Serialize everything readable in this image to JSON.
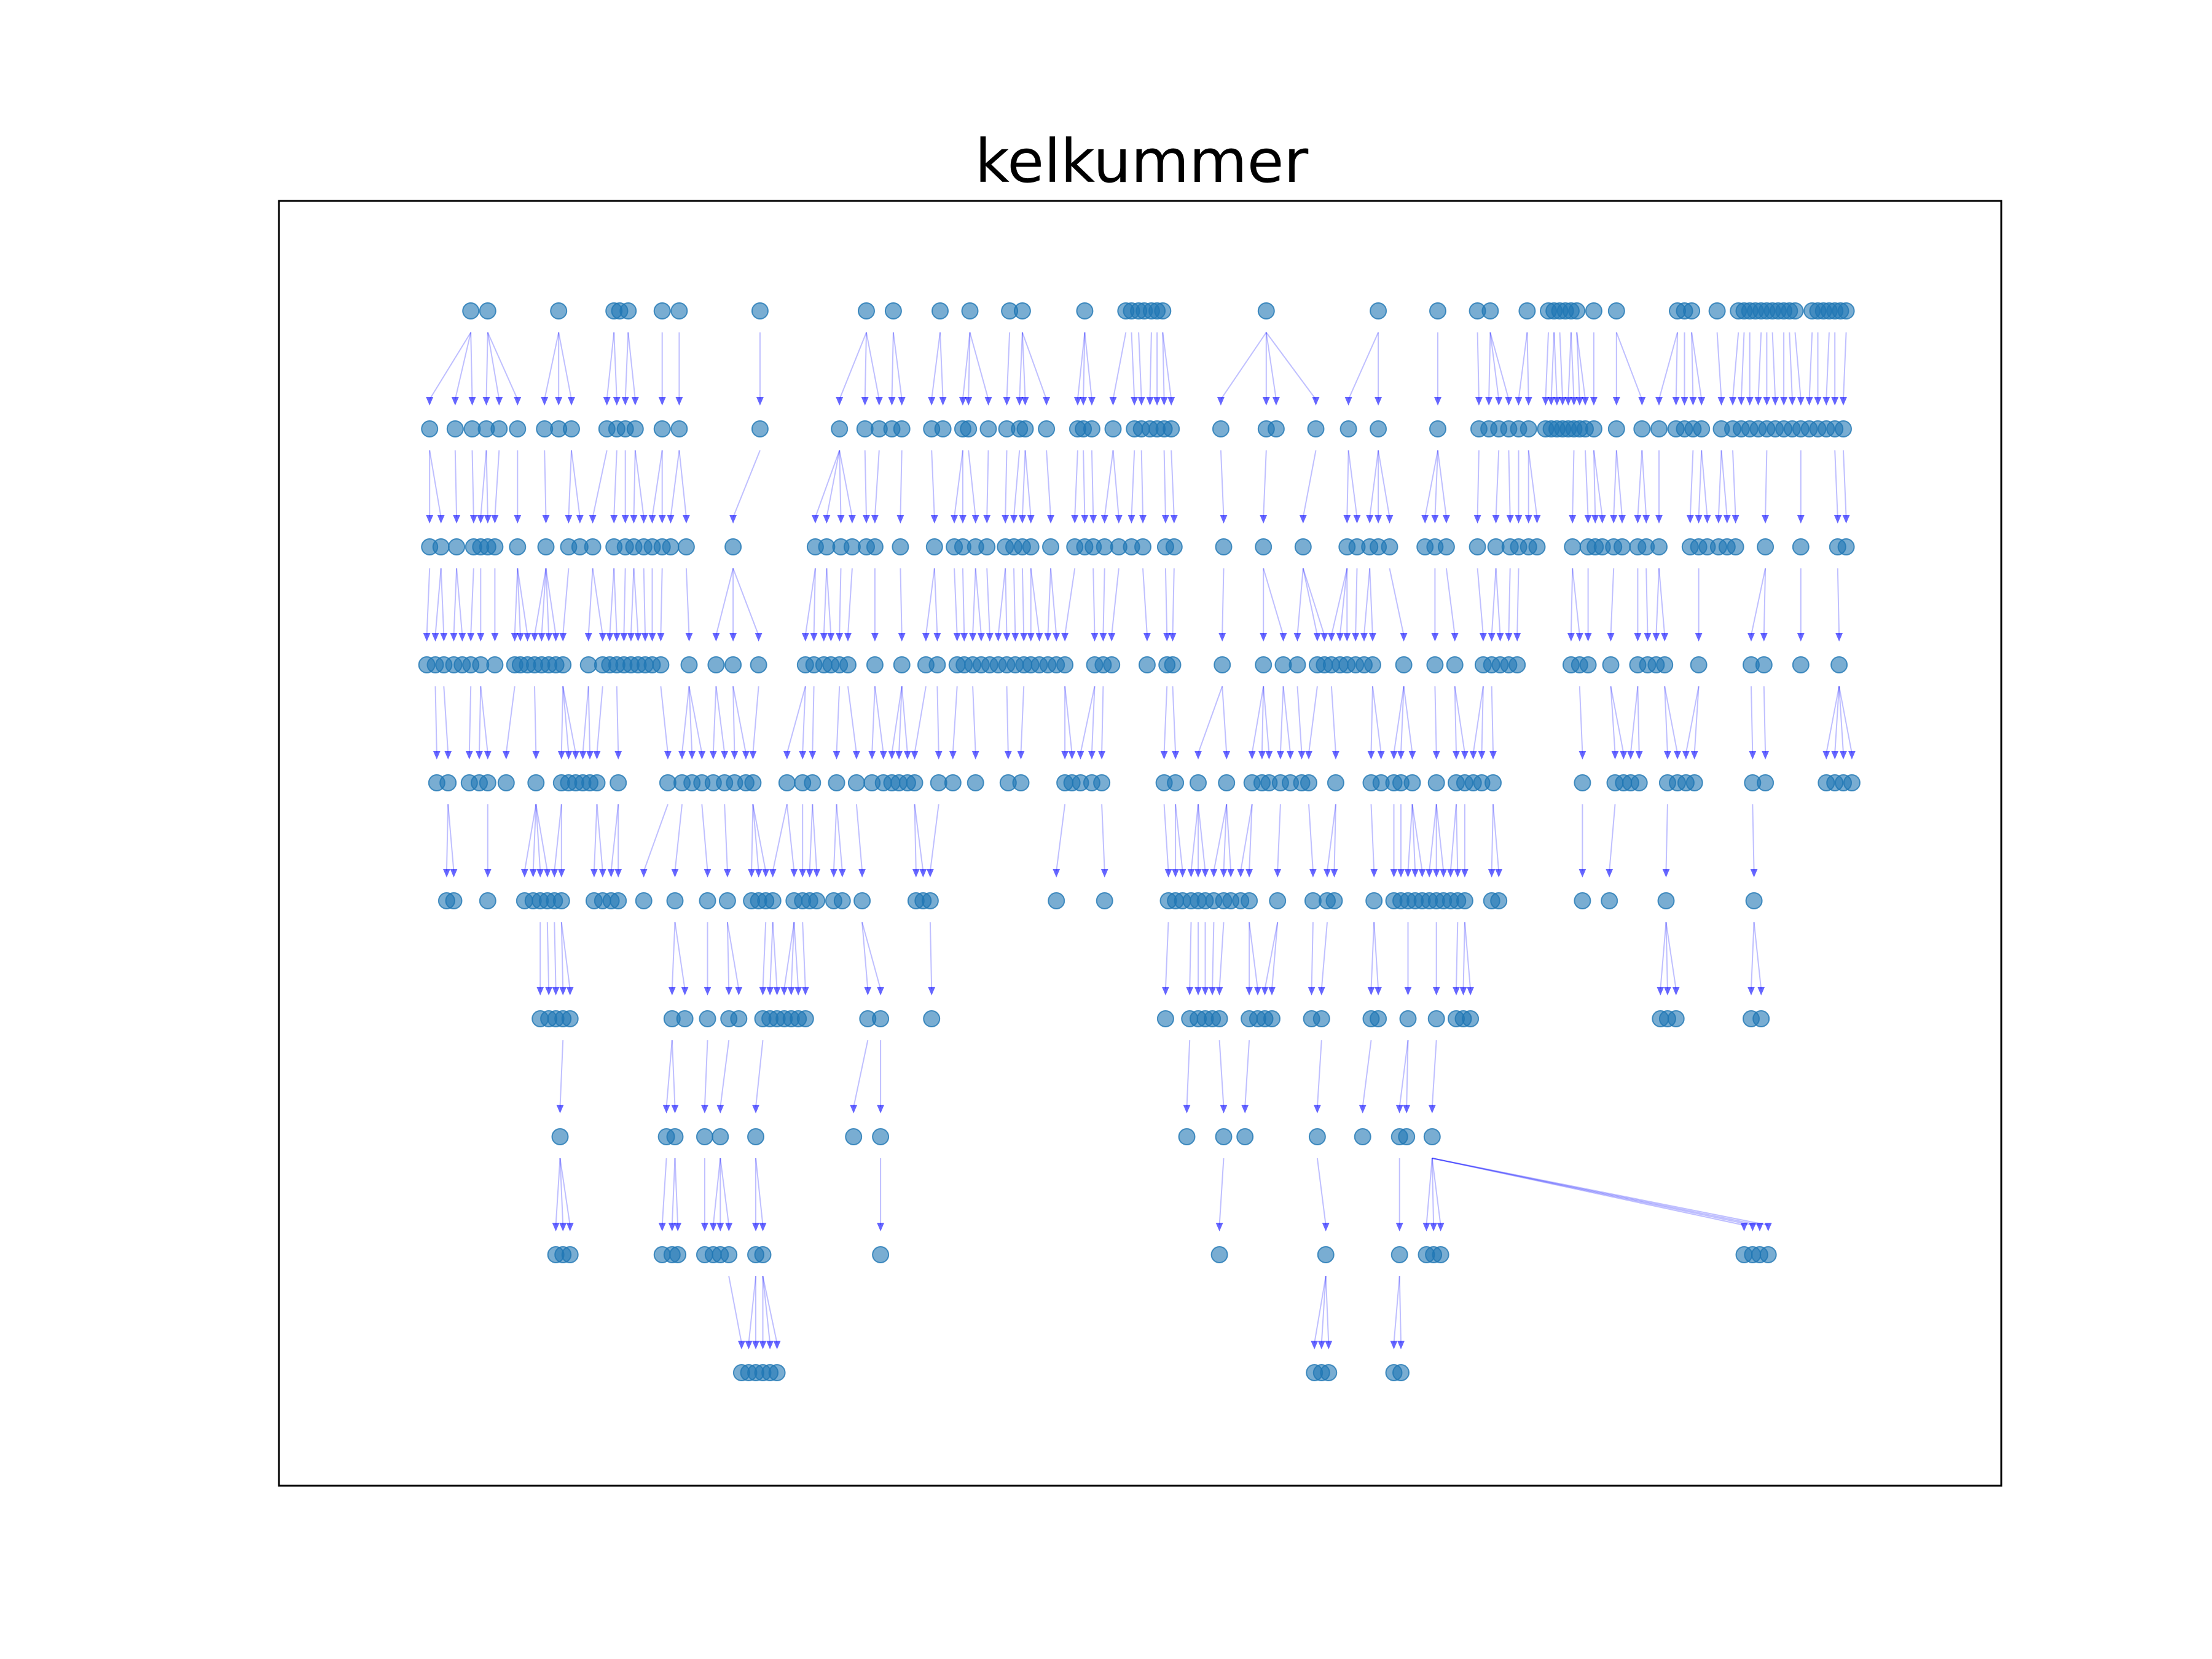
{
  "title": "kelkummer",
  "colors": {
    "node_fill": "#1f77b4",
    "node_edge": "#1f77b4",
    "edge": "#0000ff",
    "frame": "#000000",
    "background": "#ffffff"
  },
  "graph": {
    "type": "layered-tree",
    "levels": 10,
    "node_alpha": 0.6,
    "edge_alpha": 0.25,
    "node_columns": [
      [
        332,
        344,
        394,
        433,
        437,
        443,
        467,
        479,
        536,
        611,
        630,
        663,
        684,
        712,
        721,
        765,
        794,
        798,
        803,
        807,
        812,
        816,
        820,
        893,
        972,
        1014,
        1042,
        1051,
        1077,
        1092,
        1096,
        1100,
        1104,
        1108,
        1112,
        1124,
        1140,
        1183,
        1188,
        1193,
        1211,
        1226,
        1230,
        1234,
        1238,
        1242,
        1246,
        1250,
        1254,
        1258,
        1262,
        1266,
        1278,
        1282,
        1286,
        1290,
        1294,
        1298,
        1302
      ],
      [
        303,
        321,
        333,
        343,
        352,
        365,
        384,
        394,
        403,
        428,
        435,
        441,
        448,
        467,
        479,
        536,
        592,
        610,
        620,
        629,
        636,
        657,
        665,
        679,
        683,
        697,
        710,
        719,
        723,
        738,
        760,
        764,
        770,
        785,
        800,
        805,
        811,
        816,
        821,
        826,
        861,
        893,
        900,
        928,
        951,
        972,
        1014,
        1043,
        1050,
        1057,
        1064,
        1071,
        1078,
        1090,
        1094,
        1098,
        1102,
        1106,
        1110,
        1114,
        1118,
        1124,
        1140,
        1158,
        1170,
        1182,
        1188,
        1194,
        1200,
        1214,
        1222,
        1228,
        1234,
        1240,
        1246,
        1252,
        1258,
        1264,
        1270,
        1276,
        1282,
        1288,
        1294,
        1300
      ],
      [
        303,
        311,
        322,
        334,
        339,
        344,
        349,
        365,
        385,
        401,
        409,
        418,
        433,
        441,
        447,
        454,
        460,
        467,
        473,
        484,
        517,
        575,
        583,
        593,
        601,
        611,
        617,
        635,
        659,
        673,
        679,
        688,
        696,
        709,
        715,
        721,
        727,
        741,
        758,
        765,
        771,
        779,
        789,
        798,
        806,
        822,
        828,
        863,
        891,
        919,
        950,
        957,
        966,
        972,
        980,
        1005,
        1012,
        1020,
        1042,
        1055,
        1065,
        1071,
        1078,
        1084,
        1109,
        1120,
        1125,
        1130,
        1138,
        1144,
        1155,
        1161,
        1170,
        1192,
        1198,
        1204,
        1212,
        1218,
        1224,
        1245,
        1270,
        1296,
        1302
      ],
      [
        301,
        307,
        313,
        320,
        326,
        332,
        339,
        349,
        363,
        367,
        372,
        377,
        382,
        387,
        392,
        397,
        415,
        425,
        430,
        435,
        440,
        445,
        450,
        455,
        460,
        466,
        486,
        505,
        517,
        535,
        568,
        574,
        581,
        586,
        592,
        598,
        617,
        636,
        653,
        661,
        675,
        680,
        686,
        692,
        698,
        704,
        710,
        716,
        722,
        727,
        733,
        739,
        745,
        751,
        772,
        778,
        784,
        809,
        823,
        827,
        862,
        891,
        905,
        915,
        929,
        934,
        939,
        945,
        950,
        956,
        962,
        968,
        990,
        1012,
        1026,
        1046,
        1052,
        1058,
        1064,
        1070,
        1108,
        1114,
        1120,
        1136,
        1155,
        1162,
        1168,
        1174,
        1198,
        1235,
        1244,
        1270,
        1297
      ],
      [
        308,
        316,
        331,
        338,
        344,
        357,
        378,
        396,
        401,
        406,
        411,
        416,
        421,
        436,
        471,
        481,
        488,
        495,
        503,
        511,
        518,
        526,
        531,
        555,
        566,
        573,
        590,
        604,
        615,
        623,
        629,
        634,
        640,
        645,
        662,
        672,
        688,
        711,
        720,
        751,
        756,
        762,
        770,
        777,
        821,
        829,
        845,
        865,
        883,
        890,
        895,
        903,
        910,
        918,
        923,
        942,
        967,
        974,
        983,
        988,
        996,
        1013,
        1027,
        1033,
        1039,
        1045,
        1053,
        1116,
        1139,
        1145,
        1150,
        1156,
        1176,
        1183,
        1189,
        1195,
        1236,
        1245,
        1288,
        1294,
        1300,
        1306
      ],
      [
        315,
        320,
        344,
        370,
        376,
        381,
        386,
        391,
        396,
        419,
        425,
        431,
        436,
        454,
        476,
        499,
        513,
        530,
        535,
        540,
        545,
        560,
        566,
        571,
        576,
        588,
        594,
        608,
        646,
        651,
        656,
        745,
        779,
        824,
        829,
        834,
        840,
        845,
        850,
        856,
        863,
        868,
        875,
        881,
        901,
        926,
        936,
        941,
        969,
        983,
        988,
        993,
        998,
        1003,
        1008,
        1013,
        1018,
        1023,
        1028,
        1033,
        1052,
        1057,
        1116,
        1135,
        1175,
        1237
      ],
      [
        381,
        387,
        392,
        397,
        402,
        474,
        483,
        499,
        514,
        521,
        538,
        543,
        548,
        553,
        558,
        563,
        568,
        612,
        621,
        657,
        822,
        839,
        845,
        850,
        855,
        860,
        881,
        887,
        892,
        897,
        925,
        932,
        967,
        972,
        993,
        1013,
        1027,
        1032,
        1037,
        1171,
        1176,
        1182,
        1235,
        1242
      ],
      [
        395,
        470,
        476,
        497,
        508,
        533,
        602,
        621,
        837,
        863,
        878,
        929,
        961,
        987,
        992,
        1010
      ],
      [
        392,
        397,
        402,
        467,
        474,
        478,
        497,
        503,
        508,
        514,
        533,
        538,
        621,
        860,
        935,
        987,
        1006,
        1011,
        1016,
        1230,
        1236,
        1241,
        1247
      ],
      [
        523,
        528,
        533,
        538,
        543,
        548,
        927,
        932,
        937,
        983,
        988
      ]
    ]
  }
}
